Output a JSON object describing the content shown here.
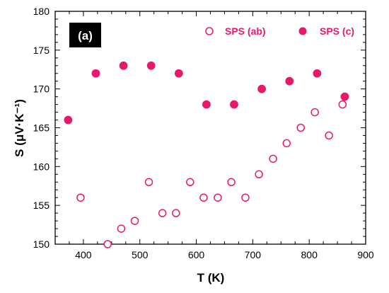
{
  "chart_data": {
    "type": "scatter",
    "panel_label": "(a)",
    "xlabel": "T (K)",
    "ylabel": "S (μV·K⁻¹)",
    "xlim": [
      350,
      900
    ],
    "ylim": [
      150,
      180
    ],
    "xticks": [
      400,
      500,
      600,
      700,
      800,
      900
    ],
    "yticks": [
      150,
      155,
      160,
      165,
      170,
      175,
      180
    ],
    "legend_position": "top-right",
    "grid": false,
    "series": [
      {
        "name": "SPS (ab)",
        "marker": "open-circle",
        "color": "#e8196b",
        "x": [
          395,
          443,
          467,
          491,
          516,
          540,
          564,
          589,
          613,
          638,
          662,
          687,
          711,
          736,
          760,
          785,
          810,
          835,
          859
        ],
        "y": [
          156,
          150,
          152,
          153,
          158,
          154,
          154,
          158,
          156,
          156,
          158,
          156,
          159,
          161,
          163,
          165,
          167,
          164,
          168
        ]
      },
      {
        "name": "SPS (c)",
        "marker": "filled-circle",
        "color": "#e8196b",
        "x": [
          373,
          422,
          471,
          520,
          569,
          618,
          667,
          716,
          765,
          814,
          863
        ],
        "y": [
          166,
          172,
          173,
          173,
          172,
          168,
          168,
          170,
          171,
          172,
          169
        ]
      }
    ]
  }
}
